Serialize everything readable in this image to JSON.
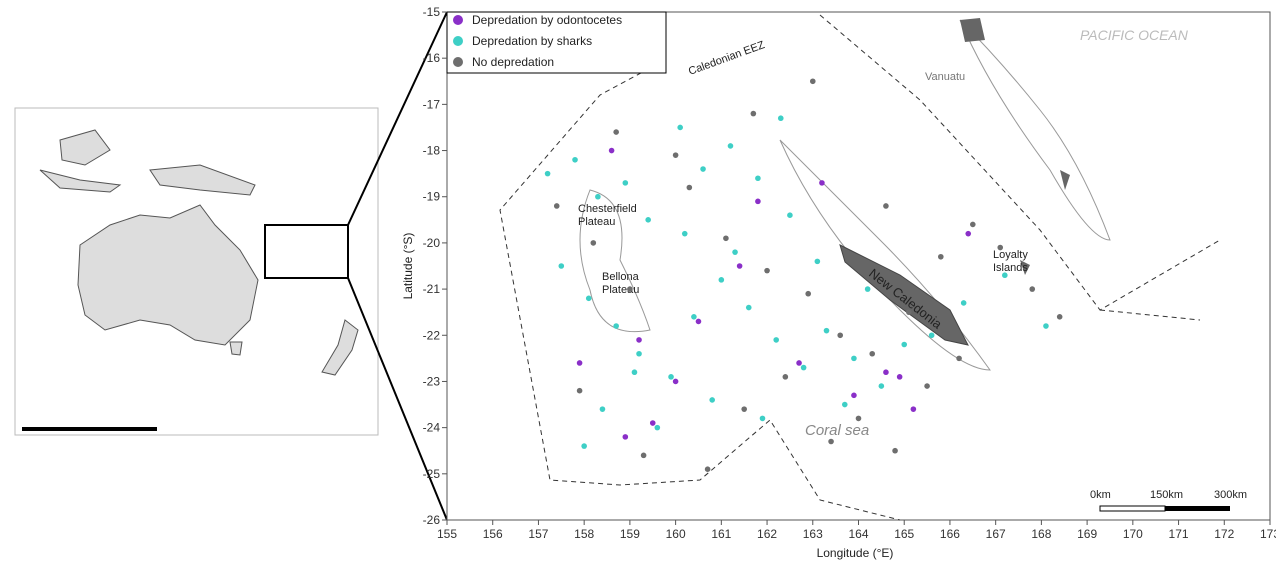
{
  "chart_data": {
    "type": "scatter",
    "xlabel": "Longitude (°E)",
    "ylabel": "Latitude (°S)",
    "xlim": [
      155,
      173
    ],
    "ylim": [
      -26,
      -15
    ],
    "xticks": [
      155,
      156,
      157,
      158,
      159,
      160,
      161,
      162,
      163,
      164,
      165,
      166,
      167,
      168,
      169,
      170,
      171,
      172,
      173
    ],
    "yticks": [
      -15,
      -16,
      -17,
      -18,
      -19,
      -20,
      -21,
      -22,
      -23,
      -24,
      -25,
      -26
    ],
    "series": [
      {
        "name": "Depredation by odontocetes",
        "color": "#8a2fc8",
        "x": [
          158.6,
          159.2,
          160.5,
          161.4,
          162.7,
          163.9,
          164.6,
          165.2,
          158.9,
          160.0,
          161.8,
          163.2,
          164.9,
          166.4,
          157.9,
          159.5
        ],
        "y": [
          -18.0,
          -22.1,
          -21.7,
          -20.5,
          -22.6,
          -23.3,
          -22.8,
          -23.6,
          -24.2,
          -23.0,
          -19.1,
          -18.7,
          -22.9,
          -19.8,
          -22.6,
          -23.9
        ]
      },
      {
        "name": "Depredation by sharks",
        "color": "#3ecfc6",
        "x": [
          157.2,
          157.8,
          158.3,
          158.9,
          159.4,
          160.1,
          160.6,
          161.2,
          161.8,
          162.3,
          157.5,
          158.1,
          158.7,
          159.2,
          159.9,
          160.4,
          161.0,
          161.6,
          162.2,
          162.8,
          163.3,
          163.9,
          164.5,
          165.0,
          158.4,
          159.6,
          160.8,
          161.9,
          163.1,
          164.2,
          165.6,
          166.3,
          167.2,
          168.1,
          158.0,
          159.1,
          160.2,
          161.3,
          162.5,
          163.7
        ],
        "y": [
          -18.5,
          -18.2,
          -19.0,
          -18.7,
          -19.5,
          -17.5,
          -18.4,
          -17.9,
          -18.6,
          -17.3,
          -20.5,
          -21.2,
          -21.8,
          -22.4,
          -22.9,
          -21.6,
          -20.8,
          -21.4,
          -22.1,
          -22.7,
          -21.9,
          -22.5,
          -23.1,
          -22.2,
          -23.6,
          -24.0,
          -23.4,
          -23.8,
          -20.4,
          -21.0,
          -22.0,
          -21.3,
          -20.7,
          -21.8,
          -24.4,
          -22.8,
          -19.8,
          -20.2,
          -19.4,
          -23.5
        ]
      },
      {
        "name": "No depredation",
        "color": "#6e6e6e",
        "x": [
          157.4,
          158.2,
          159.0,
          160.3,
          161.1,
          162.0,
          162.9,
          163.6,
          164.3,
          165.1,
          165.8,
          166.5,
          167.1,
          167.8,
          168.4,
          157.9,
          159.3,
          160.7,
          161.5,
          162.4,
          163.4,
          164.0,
          164.8,
          165.5,
          166.2,
          158.7,
          160.0,
          161.7,
          163.0,
          164.6
        ],
        "y": [
          -19.2,
          -20.0,
          -21.0,
          -18.8,
          -19.9,
          -20.6,
          -21.1,
          -22.0,
          -22.4,
          -21.5,
          -20.3,
          -19.6,
          -20.1,
          -21.0,
          -21.6,
          -23.2,
          -24.6,
          -24.9,
          -23.6,
          -22.9,
          -24.3,
          -23.8,
          -24.5,
          -23.1,
          -22.5,
          -17.6,
          -18.1,
          -17.2,
          -16.5,
          -19.2
        ]
      }
    ]
  },
  "annotations": {
    "eez": "Caledonian EEZ",
    "ocean": "PACIFIC OCEAN",
    "vanuatu": "Vanuatu",
    "chesterfield": "Chesterfield\nPlateau",
    "bellona": "Bellona\nPlateau",
    "loyalty": "Loyalty\nIslands",
    "new_caledonia": "New Caledonia",
    "coral_sea": "Coral sea"
  },
  "scale_bar": [
    "0km",
    "150km",
    "300km"
  ]
}
